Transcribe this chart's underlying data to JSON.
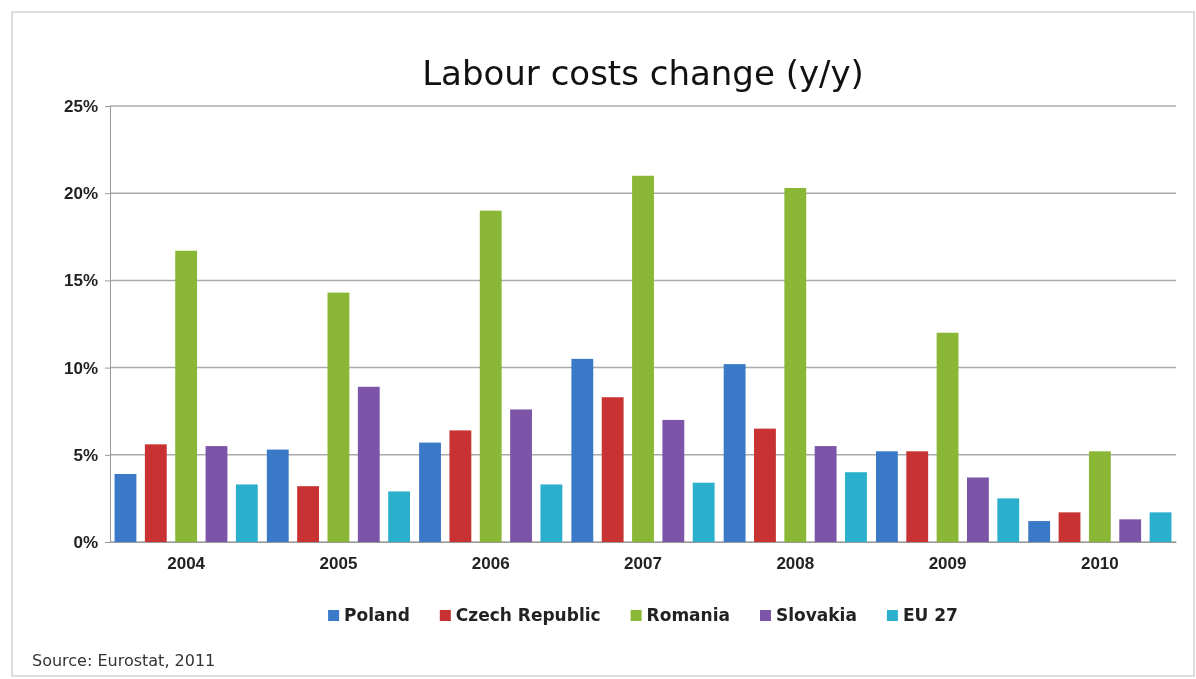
{
  "chart_data": {
    "type": "bar",
    "title": "Labour costs change (y/y)",
    "categories": [
      "2004",
      "2005",
      "2006",
      "2007",
      "2008",
      "2009",
      "2010"
    ],
    "series": [
      {
        "name": "Poland",
        "color": "#3a78c8",
        "values": [
          3.9,
          5.3,
          5.7,
          10.5,
          10.2,
          5.2,
          1.2
        ]
      },
      {
        "name": "Czech Republic",
        "color": "#c83232",
        "values": [
          5.6,
          3.2,
          6.4,
          8.3,
          6.5,
          5.2,
          1.7
        ]
      },
      {
        "name": "Romania",
        "color": "#8ab836",
        "values": [
          16.7,
          14.3,
          19.0,
          21.0,
          20.3,
          12.0,
          5.2
        ]
      },
      {
        "name": "Slovakia",
        "color": "#7d55a8",
        "values": [
          5.5,
          8.9,
          7.6,
          7.0,
          5.5,
          3.7,
          1.3
        ]
      },
      {
        "name": "EU 27",
        "color": "#2ab0cc",
        "values": [
          3.3,
          2.9,
          3.3,
          3.4,
          4.0,
          2.5,
          1.7
        ]
      }
    ],
    "ylim": [
      0,
      25
    ],
    "yticks": [
      {
        "value": 0,
        "label": "0%"
      },
      {
        "value": 5,
        "label": "5%"
      },
      {
        "value": 10,
        "label": "10%"
      },
      {
        "value": 15,
        "label": "15%"
      },
      {
        "value": 20,
        "label": "20%"
      },
      {
        "value": 25,
        "label": "25%"
      }
    ],
    "grid": "y",
    "legend": "bottom",
    "annotations": [
      "Source: Eurostat, 2011"
    ]
  }
}
